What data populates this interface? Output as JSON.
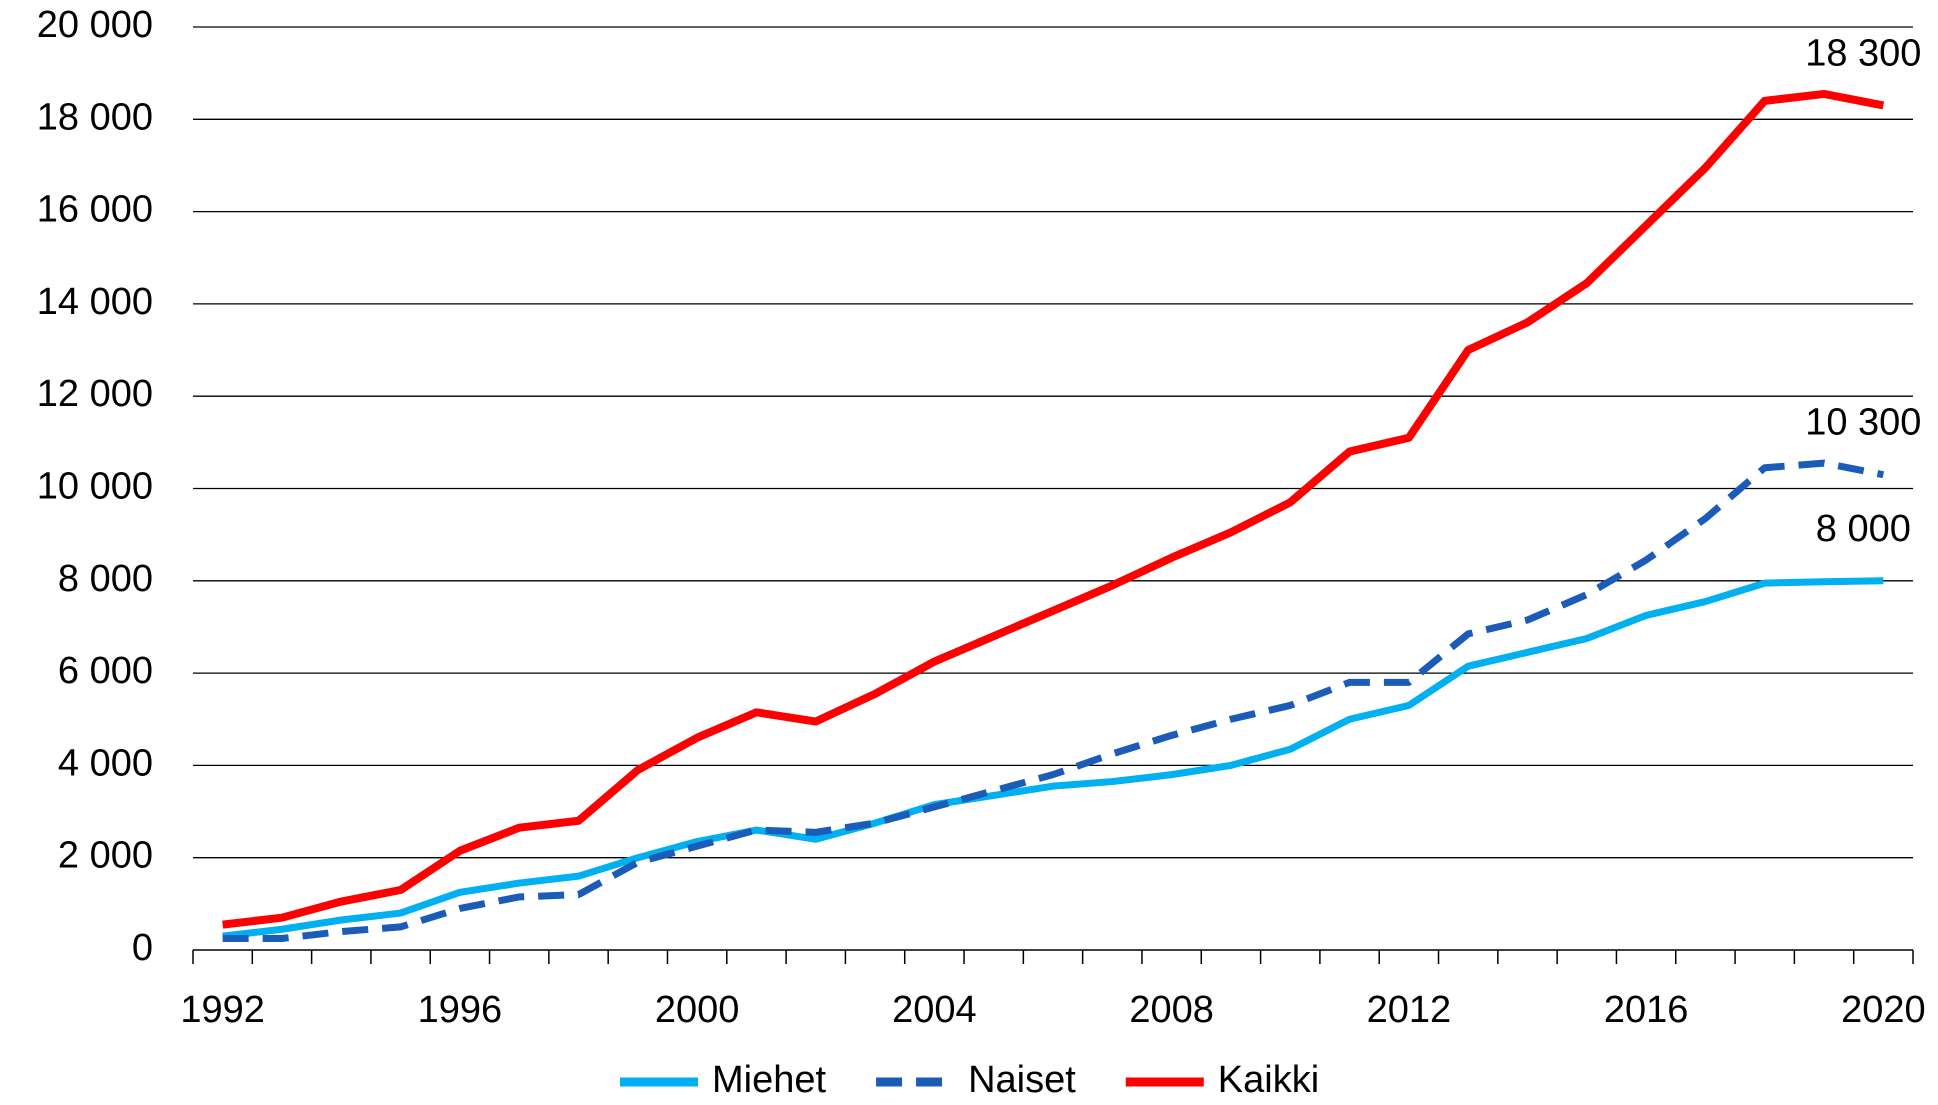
{
  "chart_data": {
    "type": "line",
    "x": [
      1992,
      1993,
      1994,
      1995,
      1996,
      1997,
      1998,
      1999,
      2000,
      2001,
      2002,
      2003,
      2004,
      2005,
      2006,
      2007,
      2008,
      2009,
      2010,
      2011,
      2012,
      2013,
      2014,
      2015,
      2016,
      2017,
      2018,
      2019,
      2020
    ],
    "series": [
      {
        "name": "Miehet",
        "color": "#00b0f0",
        "dash": false,
        "values": [
          300,
          450,
          650,
          800,
          1250,
          1450,
          1600,
          2000,
          2350,
          2600,
          2400,
          2750,
          3150,
          3350,
          3550,
          3650,
          3800,
          4000,
          4350,
          5000,
          5300,
          6150,
          6450,
          6750,
          7250,
          7550,
          7950,
          7980,
          8000
        ],
        "value_labels": [
          null,
          null,
          null,
          null,
          null,
          null,
          null,
          null,
          null,
          null,
          null,
          null,
          null,
          null,
          null,
          null,
          null,
          null,
          null,
          null,
          null,
          null,
          null,
          null,
          null,
          null,
          null,
          null,
          "8 000"
        ]
      },
      {
        "name": "Naiset",
        "color": "#1a5cb8",
        "dash": true,
        "values": [
          250,
          250,
          400,
          500,
          900,
          1150,
          1200,
          1900,
          2250,
          2600,
          2550,
          2750,
          3100,
          3450,
          3800,
          4250,
          4650,
          5000,
          5300,
          5800,
          5800,
          6850,
          7150,
          7700,
          8450,
          9350,
          10450,
          10550,
          10300
        ],
        "value_labels": [
          null,
          null,
          null,
          null,
          null,
          null,
          null,
          null,
          null,
          null,
          null,
          null,
          null,
          null,
          null,
          null,
          null,
          null,
          null,
          null,
          null,
          null,
          null,
          null,
          null,
          null,
          null,
          null,
          "10 300"
        ]
      },
      {
        "name": "Kaikki",
        "color": "#ff0000",
        "dash": false,
        "values": [
          550,
          700,
          1050,
          1300,
          2150,
          2650,
          2800,
          3900,
          4600,
          5150,
          4950,
          5550,
          6250,
          6800,
          7350,
          7900,
          8500,
          9050,
          9700,
          10800,
          11100,
          13000,
          13600,
          14450,
          15700,
          16950,
          18400,
          18550,
          18300
        ],
        "value_labels": [
          null,
          null,
          null,
          null,
          null,
          null,
          null,
          null,
          null,
          null,
          null,
          null,
          null,
          null,
          null,
          null,
          null,
          null,
          null,
          null,
          null,
          null,
          null,
          null,
          null,
          null,
          null,
          null,
          "18 300"
        ]
      }
    ],
    "xlim": [
      1991.5,
      2020.5
    ],
    "xticks": [
      1992,
      1996,
      2000,
      2004,
      2008,
      2012,
      2016,
      2020
    ],
    "ylim": [
      0,
      20000
    ],
    "yticks": [
      0,
      {
        "value": 2000,
        "label": "2 000"
      },
      {
        "value": 4000,
        "label": "4 000"
      },
      {
        "value": 6000,
        "label": "6 000"
      },
      {
        "value": 8000,
        "label": "8 000"
      },
      {
        "value": 10000,
        "label": "10 000"
      },
      {
        "value": 12000,
        "label": "12 000"
      },
      {
        "value": 14000,
        "label": "14 000"
      },
      {
        "value": 16000,
        "label": "16 000"
      },
      {
        "value": 18000,
        "label": "18 000"
      },
      {
        "value": 20000,
        "label": "20 000"
      }
    ],
    "grid": true,
    "legend": "bottom"
  }
}
